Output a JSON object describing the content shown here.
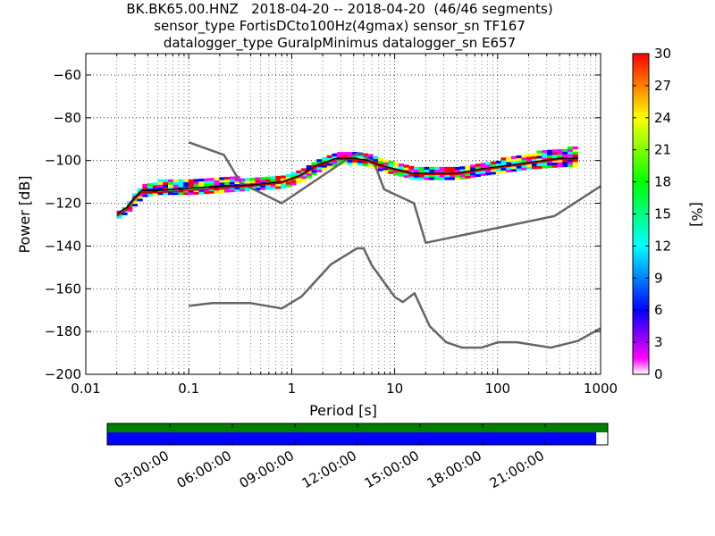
{
  "chart_data": [
    {
      "type": "ppsd",
      "title_lines": [
        "BK.BK65.00.HNZ   2018-04-20 -- 2018-04-20  (46/46 segments)",
        "sensor_type FortisDCto100Hz(4gmax) sensor_sn TF167",
        "datalogger_type GuralpMinimus datalogger_sn E657"
      ],
      "xlabel": "Period [s]",
      "ylabel": "Power [dB]",
      "xscale": "log",
      "xlim": [
        0.01,
        1000
      ],
      "ylim": [
        -200,
        -50
      ],
      "grid": true,
      "xticks": [
        0.01,
        0.1,
        1,
        10,
        100,
        1000
      ],
      "xtick_labels": [
        "0.01",
        "0.1",
        "1",
        "10",
        "100",
        "1000"
      ],
      "yticks": [
        -200,
        -180,
        -160,
        -140,
        -120,
        -100,
        -80,
        -60
      ],
      "ytick_labels": [
        "−200",
        "−180",
        "−160",
        "−140",
        "−120",
        "−100",
        "−80",
        "−60"
      ],
      "series": [
        {
          "name": "",
          "role": "new-high-noise-model",
          "color": "#666666",
          "x": [
            0.1,
            0.22,
            0.32,
            0.8,
            3.8,
            4.6,
            6.3,
            7.9,
            15.4,
            20,
            354.8,
            1000
          ],
          "y": [
            -91.5,
            -97.4,
            -110.5,
            -120,
            -98,
            -96.5,
            -101,
            -113.5,
            -120,
            -138.5,
            -126,
            -112
          ]
        },
        {
          "name": "",
          "role": "new-low-noise-model",
          "color": "#666666",
          "x": [
            0.1,
            0.17,
            0.4,
            0.8,
            1.24,
            2.4,
            4.3,
            5,
            6,
            10,
            12,
            15.6,
            21.9,
            31.6,
            45,
            70,
            101,
            154,
            328,
            600,
            1000
          ],
          "y": [
            -168,
            -166.7,
            -166.7,
            -169.2,
            -163.7,
            -148.6,
            -141.1,
            -141.1,
            -149,
            -163.8,
            -166.2,
            -162.1,
            -177.5,
            -185,
            -187.5,
            -187.5,
            -185,
            -185,
            -187.5,
            -184.4,
            -178.5
          ]
        },
        {
          "name": "",
          "role": "median",
          "color": "#000000",
          "x": [
            0.02,
            0.025,
            0.03,
            0.035,
            0.05,
            0.1,
            0.2,
            0.4,
            0.8,
            1.2,
            1.8,
            2.7,
            4,
            5.5,
            7,
            10,
            15,
            25,
            40,
            70,
            100,
            200,
            400,
            600
          ],
          "y": [
            -125,
            -122,
            -117,
            -114,
            -114,
            -113,
            -112,
            -111.5,
            -110,
            -107,
            -102,
            -99,
            -99,
            -100,
            -102,
            -104,
            -106,
            -106,
            -106,
            -104,
            -103,
            -101,
            -99,
            -99
          ]
        },
        {
          "name": "",
          "role": "mode",
          "color": "#cc0000",
          "x": [
            0.02,
            0.025,
            0.03,
            0.035,
            0.05,
            0.1,
            0.2,
            0.4,
            0.8,
            1.2,
            1.8,
            2.7,
            4,
            5.5,
            7,
            10,
            15,
            25,
            40,
            70,
            100,
            200,
            400,
            600
          ],
          "y": [
            -126,
            -123,
            -118,
            -115,
            -115,
            -114,
            -113,
            -112,
            -110.5,
            -107.5,
            -102.5,
            -99.5,
            -99.5,
            -100.5,
            -102.5,
            -104.5,
            -106.5,
            -106.5,
            -106.5,
            -104.5,
            -103.5,
            -101.5,
            -99.5,
            -99.5
          ]
        },
        {
          "name": "",
          "role": "probability-density-band",
          "x": [
            0.02,
            0.025,
            0.03,
            0.035,
            0.05,
            0.1,
            0.2,
            0.4,
            0.8,
            1.2,
            1.8,
            2.7,
            4,
            5.5,
            7,
            10,
            15,
            25,
            40,
            70,
            100,
            200,
            400,
            600
          ],
          "y_low": [
            -127,
            -124,
            -120,
            -117,
            -116,
            -116,
            -115,
            -114,
            -113,
            -110,
            -105,
            -102,
            -102,
            -103,
            -105,
            -107,
            -109,
            -109,
            -109,
            -107,
            -106,
            -104,
            -103,
            -103
          ],
          "y_high": [
            -124,
            -120,
            -114,
            -112,
            -110,
            -109,
            -108,
            -109,
            -108,
            -104,
            -99,
            -97,
            -97,
            -98,
            -99,
            -101,
            -103,
            -103,
            -103,
            -101,
            -100,
            -97,
            -95,
            -94
          ]
        }
      ]
    },
    {
      "type": "heatmap",
      "role": "colorbar",
      "colormap": "pqlx",
      "ylabel": "[%]",
      "range": [
        0,
        30
      ],
      "ticks": [
        0,
        3,
        6,
        9,
        12,
        15,
        18,
        21,
        24,
        27,
        30
      ],
      "colors": [
        "#ffffff",
        "#ff00ff",
        "#0000ff",
        "#00ffff",
        "#00ff00",
        "#ffff00",
        "#ff0000"
      ]
    },
    {
      "type": "timeline",
      "role": "data-coverage",
      "xtick_labels": [
        "03:00:00",
        "06:00:00",
        "09:00:00",
        "12:00:00",
        "15:00:00",
        "18:00:00",
        "21:00:00"
      ],
      "xtick_hours": [
        3,
        6,
        9,
        12,
        15,
        18,
        21
      ],
      "range_hours": [
        0,
        24
      ],
      "used_segments_color": "#008000",
      "data_color": "#0000ff",
      "data_fraction": 0.977
    }
  ]
}
